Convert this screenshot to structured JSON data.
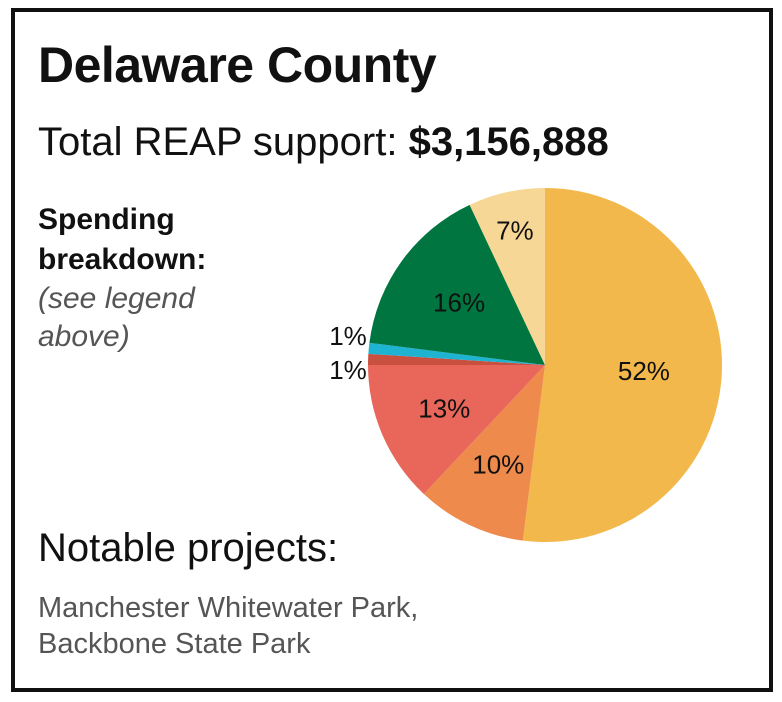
{
  "county_title": "Delaware County",
  "total": {
    "label": "Total REAP support:",
    "amount": "$3,156,888"
  },
  "breakdown": {
    "title_line1": "Spending",
    "title_line2": "breakdown:",
    "note": "(see legend above)"
  },
  "chart_data": {
    "type": "pie",
    "title": "",
    "slices": [
      {
        "label": "52%",
        "value": 52,
        "color": "#f2b84b"
      },
      {
        "label": "10%",
        "value": 10,
        "color": "#ee8a4c"
      },
      {
        "label": "13%",
        "value": 13,
        "color": "#e8665a"
      },
      {
        "label": "1%",
        "value": 1,
        "color": "#c9503f"
      },
      {
        "label": "1%",
        "value": 1,
        "color": "#1fb3d2"
      },
      {
        "label": "16%",
        "value": 16,
        "color": "#017540"
      },
      {
        "label": "7%",
        "value": 7,
        "color": "#f7d796"
      }
    ],
    "start": "12 o'clock",
    "direction": "clockwise"
  },
  "notable": {
    "heading": "Notable projects:",
    "line1": "Manchester Whitewater Park,",
    "line2": "Backbone State Park"
  }
}
